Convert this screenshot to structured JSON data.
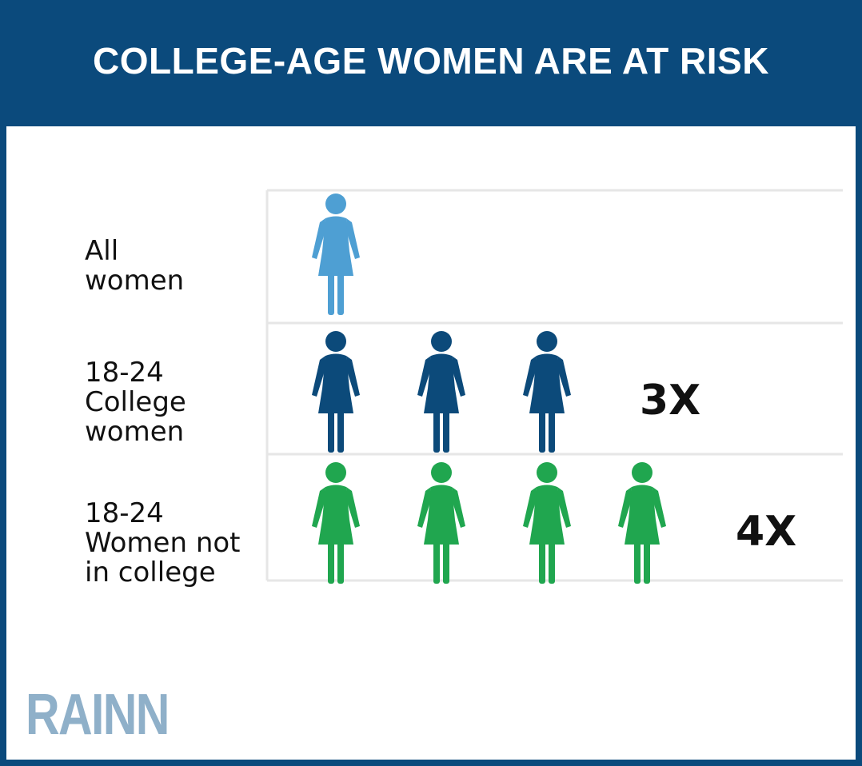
{
  "title": "COLLEGE-AGE WOMEN ARE AT RISK",
  "logo": "RAINN",
  "colors": {
    "header_bg": "#0b4a7c",
    "all_women": "#4e9fd3",
    "college_women": "#0c4a7a",
    "not_in_college": "#20a64f"
  },
  "chart_data": {
    "type": "pictograph",
    "unit_icon": "woman-icon",
    "rows": [
      {
        "label_lines": [
          "All",
          "women"
        ],
        "count": 1,
        "multiplier": "",
        "color": "#4e9fd3"
      },
      {
        "label_lines": [
          "18-24",
          "College",
          "women"
        ],
        "count": 3,
        "multiplier": "3X",
        "color": "#0c4a7a"
      },
      {
        "label_lines": [
          "18-24",
          "Women not",
          "in college"
        ],
        "count": 4,
        "multiplier": "4X",
        "color": "#20a64f"
      }
    ]
  }
}
